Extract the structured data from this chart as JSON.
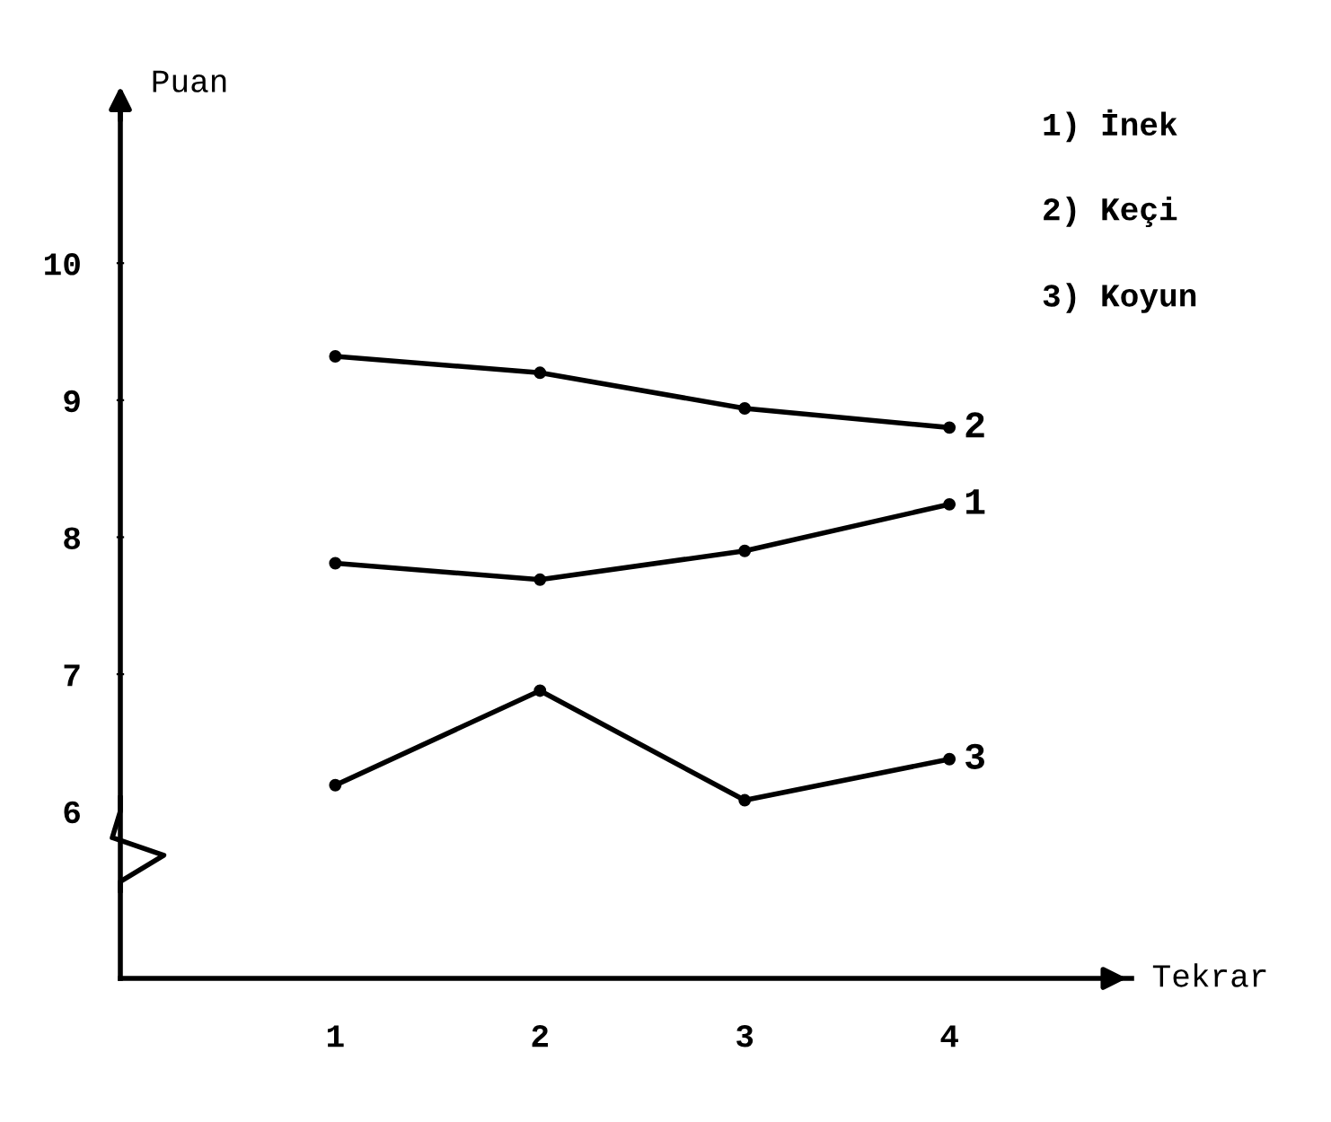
{
  "chart_data": {
    "type": "line",
    "xlabel": "Tekrar",
    "ylabel": "Puan",
    "x": [
      1,
      2,
      3,
      4
    ],
    "series": [
      {
        "name": "1",
        "color": "#000000",
        "values": [
          7.81,
          7.69,
          7.9,
          8.24
        ]
      },
      {
        "name": "2",
        "color": "#000000",
        "values": [
          9.32,
          9.2,
          8.94,
          8.8
        ]
      },
      {
        "name": "3",
        "color": "#000000",
        "values": [
          6.19,
          6.88,
          6.08,
          6.38
        ]
      }
    ],
    "xlim": [
      -0.05,
      4.89
    ],
    "ylim": [
      4.78,
      11.2
    ],
    "xticks": [
      1,
      2,
      3,
      4
    ],
    "yticks": [
      6,
      7,
      8,
      9,
      10
    ],
    "annotations": [
      "1) İnek",
      "2) Keçi",
      "3) Koyun"
    ],
    "marker": "circle",
    "line_style": "solid",
    "grid": false,
    "legend": false
  }
}
